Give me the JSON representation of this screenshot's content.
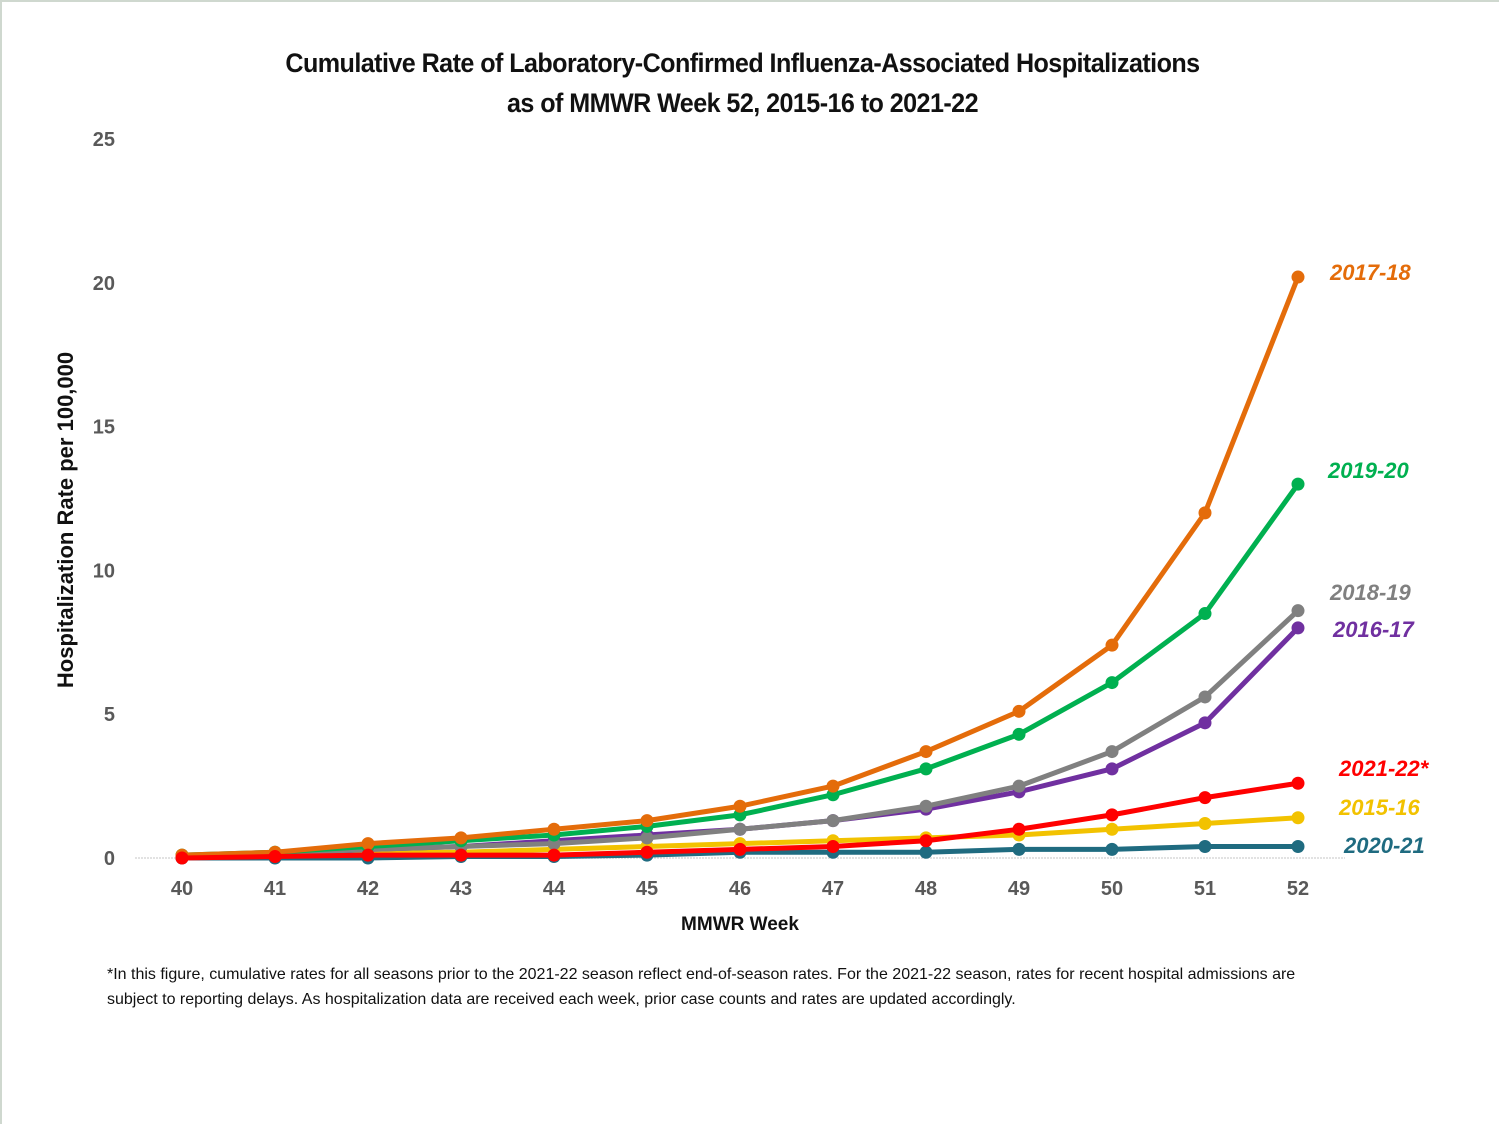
{
  "chart_data": {
    "type": "line",
    "title": "Cumulative Rate of Laboratory-Confirmed Influenza-Associated Hospitalizations",
    "subtitle": "as of MMWR Week 52, 2015-16 to 2021-22",
    "xlabel": "MMWR Week",
    "ylabel": "Hospitalization Rate per 100,000",
    "ylim": [
      0,
      25
    ],
    "yticks": [
      0,
      5,
      10,
      15,
      20,
      25
    ],
    "x": [
      40,
      41,
      42,
      43,
      44,
      45,
      46,
      47,
      48,
      49,
      50,
      51,
      52
    ],
    "grid": false,
    "legend": "inline labels at right end of each series",
    "series": [
      {
        "name": "2020-21",
        "color": "#1f6b80",
        "values": [
          0,
          0,
          0,
          0.05,
          0.05,
          0.1,
          0.2,
          0.2,
          0.2,
          0.3,
          0.3,
          0.4,
          0.4
        ]
      },
      {
        "name": "2015-16",
        "color": "#f2c200",
        "values": [
          0.05,
          0.1,
          0.2,
          0.2,
          0.3,
          0.4,
          0.5,
          0.6,
          0.7,
          0.8,
          1.0,
          1.2,
          1.4
        ]
      },
      {
        "name": "2016-17",
        "color": "#7030a0",
        "values": [
          0.05,
          0.1,
          0.3,
          0.4,
          0.6,
          0.8,
          1.0,
          1.3,
          1.7,
          2.3,
          3.1,
          4.7,
          8.0
        ]
      },
      {
        "name": "2018-19",
        "color": "#808080",
        "values": [
          0.05,
          0.15,
          0.3,
          0.4,
          0.5,
          0.7,
          1.0,
          1.3,
          1.8,
          2.5,
          3.7,
          5.6,
          8.6
        ]
      },
      {
        "name": "2019-20",
        "color": "#00b050",
        "values": [
          0.1,
          0.2,
          0.4,
          0.6,
          0.8,
          1.1,
          1.5,
          2.2,
          3.1,
          4.3,
          6.1,
          8.5,
          13.0
        ]
      },
      {
        "name": "2017-18",
        "color": "#e46c0a",
        "values": [
          0.1,
          0.2,
          0.5,
          0.7,
          1.0,
          1.3,
          1.8,
          2.5,
          3.7,
          5.1,
          7.4,
          12.0,
          20.2
        ]
      },
      {
        "name": "2021-22*",
        "color": "#ff0000",
        "values": [
          0,
          0.05,
          0.1,
          0.1,
          0.1,
          0.2,
          0.3,
          0.4,
          0.6,
          1.0,
          1.5,
          2.1,
          2.6
        ]
      }
    ],
    "annotations": [
      {
        "text": "2017-18",
        "series": "2017-18"
      },
      {
        "text": "2019-20",
        "series": "2019-20"
      },
      {
        "text": "2018-19",
        "series": "2018-19"
      },
      {
        "text": "2016-17",
        "series": "2016-17"
      },
      {
        "text": "2021-22*",
        "series": "2021-22*"
      },
      {
        "text": "2015-16",
        "series": "2015-16"
      },
      {
        "text": "2020-21",
        "series": "2020-21"
      }
    ]
  },
  "footnote": {
    "line1": "*In this figure, cumulative rates for all seasons prior to the 2021-22 season reflect end-of-season rates. For the 2021-22 season, rates for recent hospital admissions are",
    "line2": "subject to reporting delays. As hospitalization data are received each week, prior case counts and rates are updated accordingly."
  }
}
